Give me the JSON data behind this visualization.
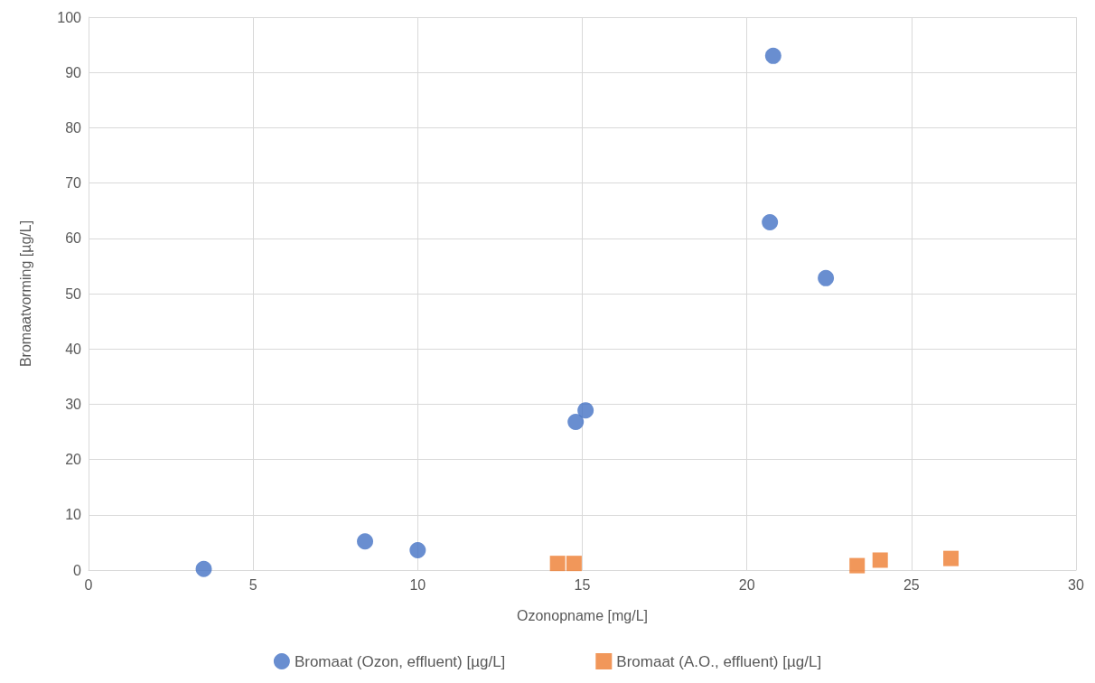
{
  "chart_data": {
    "type": "scatter",
    "xlabel": "Ozonopname [mg/L]",
    "ylabel": "Bromaatvorming [µg/L]",
    "xlim": [
      0,
      30
    ],
    "xticks": [
      0,
      5,
      10,
      15,
      20,
      25,
      30
    ],
    "ylim": [
      0,
      100
    ],
    "yticks": [
      0,
      10,
      20,
      30,
      40,
      50,
      60,
      70,
      80,
      90,
      100
    ],
    "grid": true,
    "legend": "bottom",
    "series": [
      {
        "name": "Bromaat (Ozon, effluent) [µg/L]",
        "color": "#4472c4",
        "marker": "circle",
        "x": [
          3.5,
          8.4,
          10.0,
          14.8,
          15.1,
          20.7,
          20.8,
          22.4
        ],
        "values": [
          0.2,
          5.2,
          3.6,
          26.8,
          28.9,
          62.9,
          93,
          52.8
        ]
      },
      {
        "name": "Bromaat (A.O., effluent) [µg/L]",
        "color": "#ed7d31",
        "marker": "square",
        "x": [
          14.25,
          14.75,
          23.35,
          24.05,
          26.2
        ],
        "values": [
          1.2,
          1.2,
          0.8,
          1.8,
          2.1
        ]
      }
    ]
  }
}
